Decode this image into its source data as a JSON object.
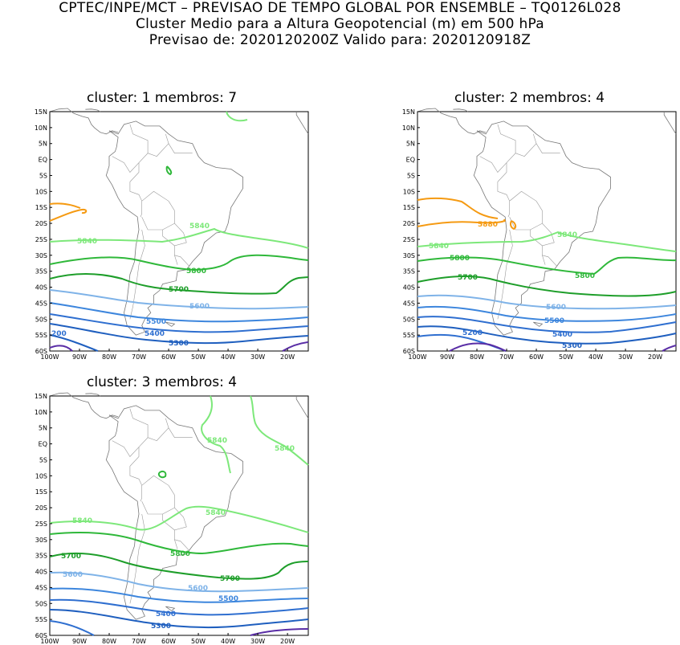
{
  "header": {
    "line1": "CPTEC/INPE/MCT – PREVISAO DE TEMPO GLOBAL POR ENSEMBLE – TQ0126L028",
    "line2": "Cluster Medio para a Altura Geopotencial (m) em 500 hPa",
    "line3": "Previsao de: 2020120200Z    Valido para: 2020120918Z"
  },
  "axes": {
    "lat_labels": [
      "15N",
      "10N",
      "5N",
      "EQ",
      "5S",
      "10S",
      "15S",
      "20S",
      "25S",
      "30S",
      "35S",
      "40S",
      "45S",
      "50S",
      "55S",
      "60S"
    ],
    "lon_labels": [
      "100W",
      "90W",
      "80W",
      "70W",
      "60W",
      "50W",
      "40W",
      "30W",
      "20W"
    ]
  },
  "colors": {
    "c5200": "#5a2ea6",
    "c5300": "#1f5fbf",
    "c5400": "#2f6fd0",
    "c5500": "#3d86dd",
    "c5600": "#7fb3e8",
    "c5700": "#1e9e2a",
    "c5800": "#2fb83a",
    "c5840": "#7de87a",
    "c5880": "#f59a12"
  },
  "panels": [
    {
      "title": "cluster: 1   membros: 7",
      "contour_labels": [
        "5840",
        "5840",
        "5800",
        "5700",
        "5600",
        "5500",
        "5400",
        "5300",
        "200"
      ]
    },
    {
      "title": "cluster: 2   membros: 4",
      "contour_labels": [
        "5880",
        "5840",
        "5840",
        "5800",
        "5700",
        "5800",
        "5600",
        "5500",
        "5400",
        "5200",
        "5300"
      ]
    },
    {
      "title": "cluster: 3   membros: 4",
      "contour_labels": [
        "5840",
        "5840",
        "5840",
        "5840",
        "5800",
        "5700",
        "5700",
        "5600",
        "5600",
        "5500",
        "5400",
        "5300"
      ]
    }
  ]
}
